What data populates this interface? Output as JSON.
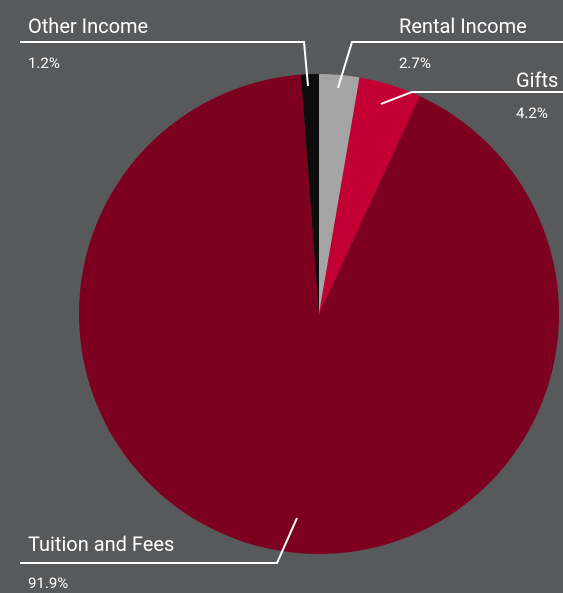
{
  "chart_data": {
    "type": "pie",
    "categories": [
      "Rental Income",
      "Gifts",
      "Tuition and Fees",
      "Other Income"
    ],
    "values": [
      2.7,
      4.2,
      91.9,
      1.2
    ],
    "value_labels": [
      "2.7%",
      "4.2%",
      "91.9%",
      "1.2%"
    ],
    "colors": [
      "#a5a5a5",
      "#c20033",
      "#7e0020",
      "#0d0d0d"
    ]
  }
}
